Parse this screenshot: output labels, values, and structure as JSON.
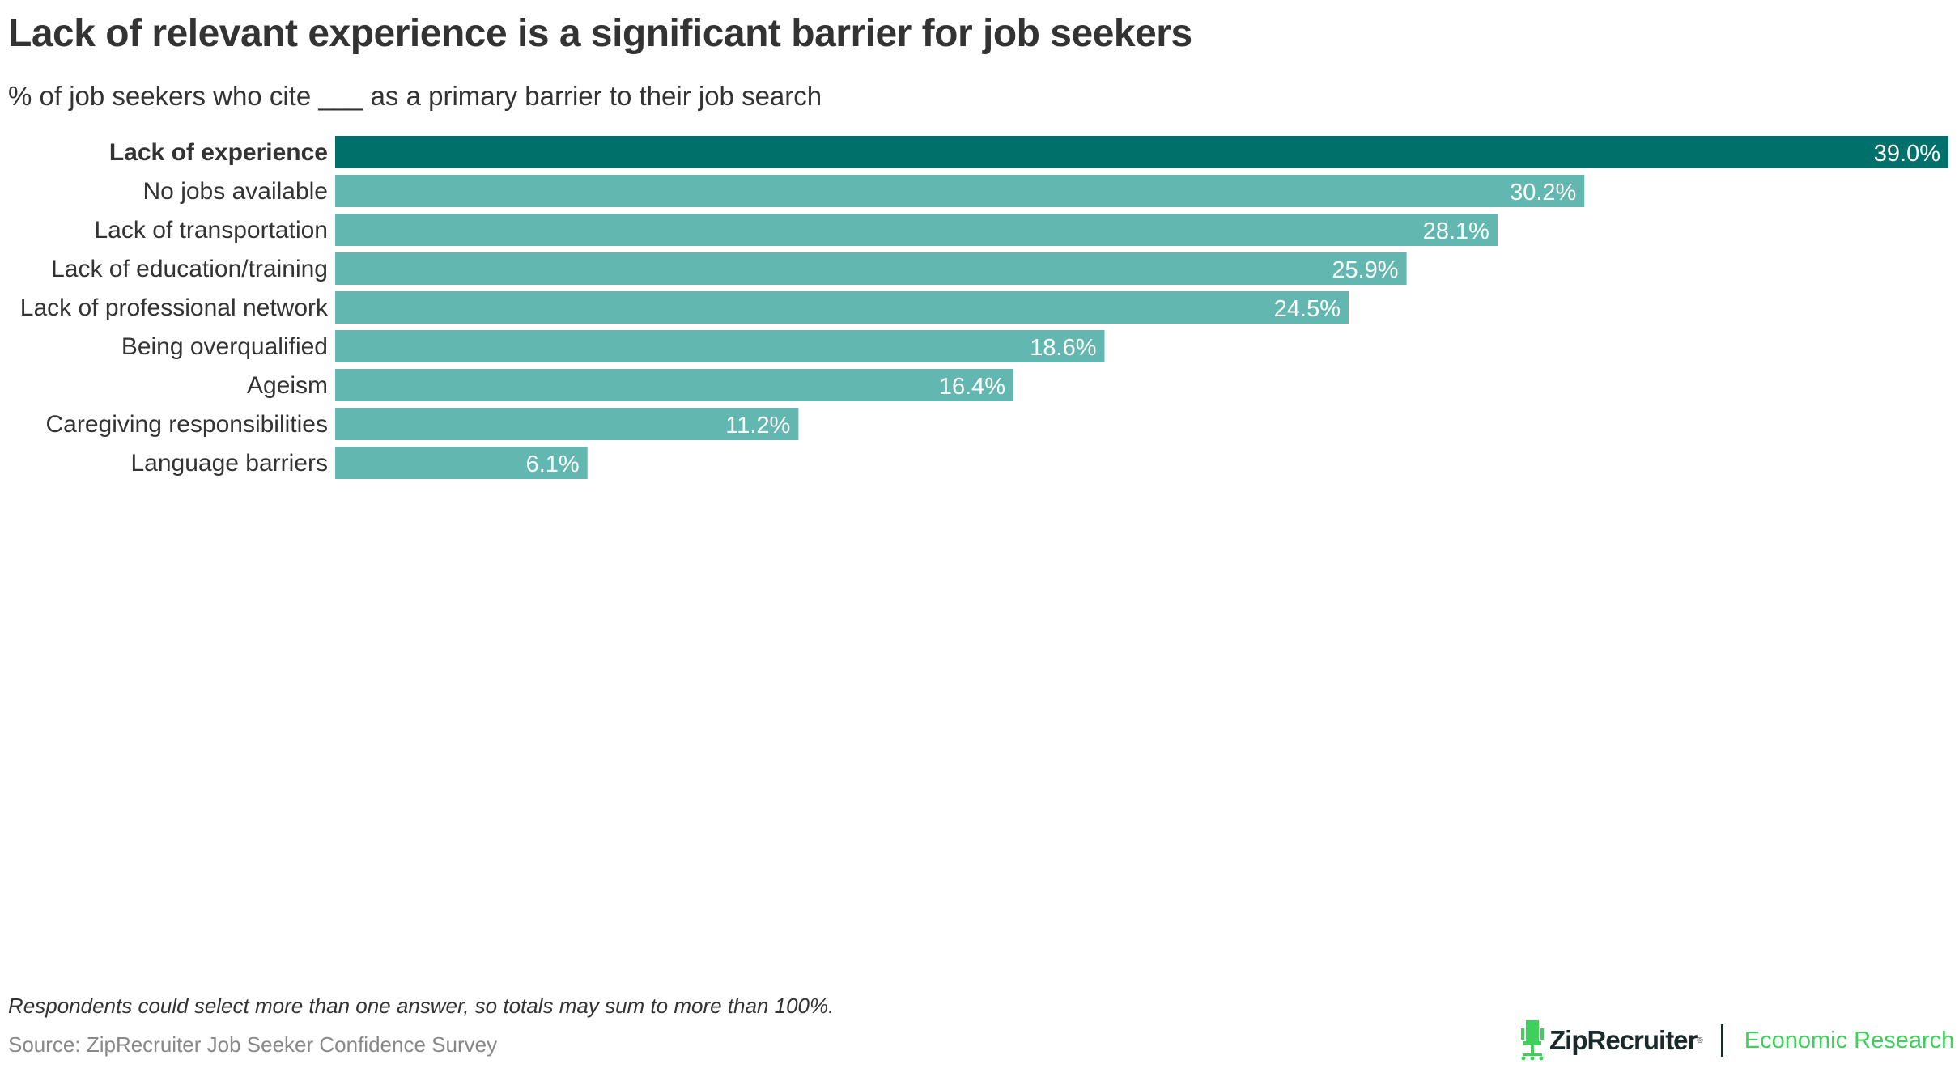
{
  "title": "Lack of relevant experience is a significant barrier for job seekers",
  "subtitle": "% of job seekers who cite ___ as a primary barrier to their job search",
  "note": "Respondents could select more than one answer, so totals may sum to more than 100%.",
  "source": "Source: ZipRecruiter Job Seeker Confidence Survey",
  "logo": {
    "brand": "ZipRecruiter",
    "division": "Economic Research",
    "icon": "chair-icon",
    "brand_color": "#3fd05c"
  },
  "chart_data": {
    "type": "bar",
    "orientation": "horizontal",
    "categories": [
      "Lack of experience",
      "No jobs available",
      "Lack of transportation",
      "Lack of education/training",
      "Lack of professional network",
      "Being overqualified",
      "Ageism",
      "Caregiving responsibilities",
      "Language barriers"
    ],
    "values": [
      39.0,
      30.2,
      28.1,
      25.9,
      24.5,
      18.6,
      16.4,
      11.2,
      6.1
    ],
    "data_labels": [
      "39.0%",
      "30.2%",
      "28.1%",
      "25.9%",
      "24.5%",
      "18.6%",
      "16.4%",
      "11.2%",
      "6.1%"
    ],
    "highlight_index": 0,
    "colors": {
      "highlight": "#00706a",
      "default": "#62b8b1"
    },
    "xlim": [
      0,
      39
    ],
    "grid": false
  }
}
